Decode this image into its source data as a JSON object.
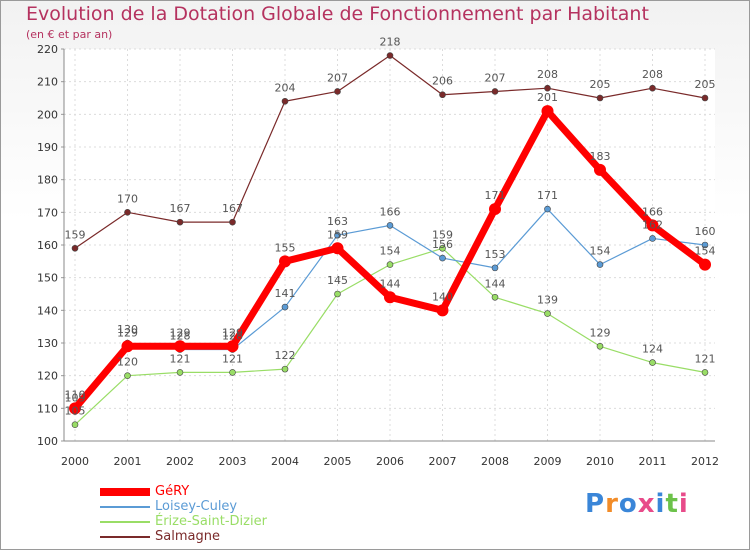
{
  "chart_data": {
    "type": "line",
    "title": "Evolution de la Dotation Globale de Fonctionnement par Habitant",
    "subtitle": "(en € et par an)",
    "categories": [
      "2000",
      "2001",
      "2002",
      "2003",
      "2004",
      "2005",
      "2006",
      "2007",
      "2008",
      "2009",
      "2010",
      "2011",
      "2012"
    ],
    "ylim": [
      100,
      220
    ],
    "yticks": [
      100,
      110,
      120,
      130,
      140,
      150,
      160,
      170,
      180,
      190,
      200,
      210,
      220
    ],
    "series": [
      {
        "name": "GéRY",
        "color": "#ff0000",
        "values": [
          110,
          129,
          129,
          129,
          155,
          159,
          144,
          140,
          171,
          201,
          183,
          166,
          154
        ]
      },
      {
        "name": "Loisey-Culey",
        "color": "#5b9bd5",
        "values": [
          109,
          130,
          128,
          128,
          141,
          163,
          166,
          156,
          153,
          171,
          154,
          162,
          160
        ]
      },
      {
        "name": "Érize-Saint-Dizier",
        "color": "#99dd66",
        "values": [
          105,
          120,
          121,
          121,
          122,
          145,
          154,
          159,
          144,
          139,
          129,
          124,
          121
        ]
      },
      {
        "name": "Salmagne",
        "color": "#7a2a2a",
        "values": [
          159,
          170,
          167,
          167,
          204,
          207,
          218,
          206,
          207,
          208,
          205,
          208,
          205
        ]
      }
    ]
  },
  "logo": {
    "text": "Proxiti"
  }
}
